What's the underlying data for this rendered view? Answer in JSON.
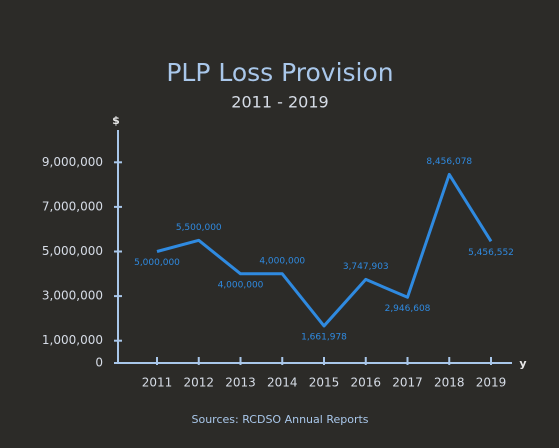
{
  "chart_data": {
    "type": "line",
    "title": "PLP Loss Provision",
    "subtitle": "2011 - 2019",
    "y_label": "$",
    "x_label": "y",
    "source": "Sources: RCDSO Annual Reports",
    "categories": [
      "2011",
      "2012",
      "2013",
      "2014",
      "2015",
      "2016",
      "2017",
      "2018",
      "2019"
    ],
    "series": [
      {
        "name": "PLP Loss Provision",
        "color": "#2f8ae0",
        "values": [
          5000000,
          5500000,
          4000000,
          4000000,
          1661978,
          3747903,
          2946608,
          8456078,
          5456552
        ],
        "value_labels": [
          "5,000,000",
          "5,500,000",
          "4,000,000",
          "4,000,000",
          "1,661,978",
          "3,747,903",
          "2,946,608",
          "8,456,078",
          "5,456,552"
        ]
      }
    ],
    "ylim": [
      0,
      10000000
    ],
    "yticks": [
      0,
      {
        "value": 1000000,
        "label": "1,000,000"
      },
      {
        "value": 3000000,
        "label": "3,000,000"
      },
      {
        "value": 5000000,
        "label": "5,000,000"
      },
      {
        "value": 7000000,
        "label": "7,000,000"
      },
      {
        "value": 9000000,
        "label": "9,000,000"
      }
    ]
  }
}
